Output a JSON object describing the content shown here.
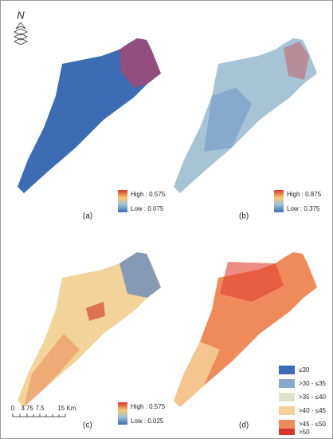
{
  "north_arrow": "N",
  "panels": [
    {
      "label": "(a)",
      "legend": {
        "high": "High : 0.575",
        "low": "Low : 0.075"
      }
    },
    {
      "label": "(b)",
      "legend": {
        "high": "High : 0.875",
        "low": "Low : 0.375"
      }
    },
    {
      "label": "(c)",
      "legend": {
        "high": "High : 0.575",
        "low": "Low : 0.025"
      }
    },
    {
      "label": "(d)",
      "legend": {
        "classes": [
          "≤30",
          ">30 - ≤35",
          ">35 - ≤40",
          ">40 - ≤45",
          ">45 - ≤50",
          ">50"
        ]
      }
    }
  ],
  "scale_bar": {
    "ticks": [
      "0",
      "3.75",
      "7.5",
      "15 Km."
    ]
  }
}
